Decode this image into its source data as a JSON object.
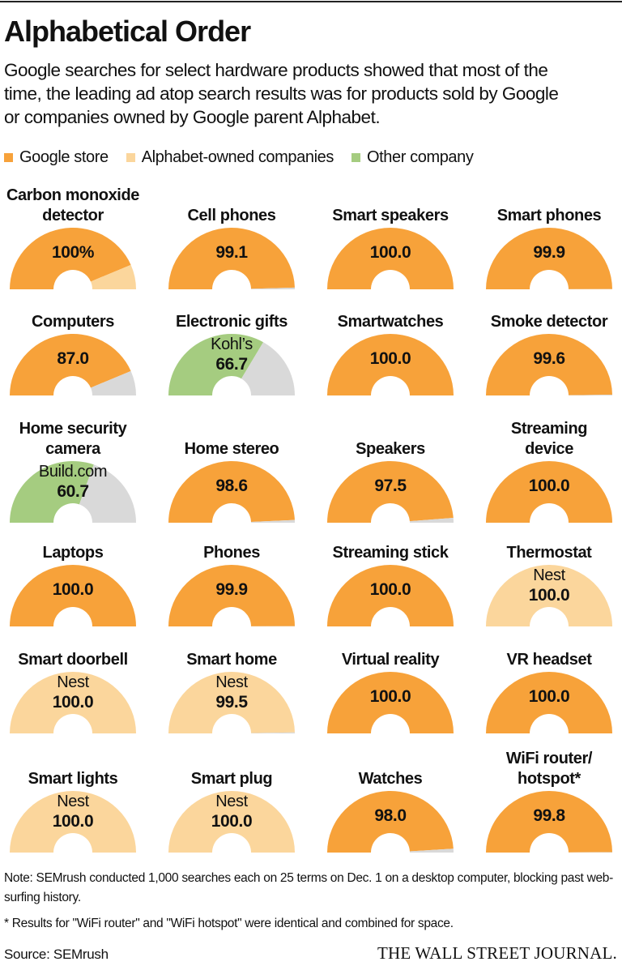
{
  "header": {
    "title": "Alphabetical Order",
    "subtitle": "Google searches for select hardware products showed that most of the time, the leading ad atop search results was for products sold by Google or companies owned by Google parent Alphabet."
  },
  "legend": [
    {
      "label": "Google store",
      "color": "#F7A23A"
    },
    {
      "label": "Alphabet-owned companies",
      "color": "#FBD69C"
    },
    {
      "label": "Other company",
      "color": "#A5CC80"
    }
  ],
  "colors": {
    "google": "#F7A23A",
    "alphabet": "#FBD69C",
    "other": "#A5CC80",
    "none": "#D9D9D9"
  },
  "chart_data": {
    "type": "gauge",
    "unit": "percent of searches where leading ad was from company",
    "range": [
      0,
      100
    ],
    "items": [
      {
        "title_lines": [
          "Carbon monoxide",
          "detector"
        ],
        "value_label": "100%",
        "company": "",
        "google": 87,
        "alphabet": 13,
        "other": 0
      },
      {
        "title_lines": [
          "Cell phones"
        ],
        "value_label": "99.1",
        "company": "",
        "google": 99.1,
        "alphabet": 0,
        "other": 0
      },
      {
        "title_lines": [
          "Smart speakers"
        ],
        "value_label": "100.0",
        "company": "",
        "google": 100,
        "alphabet": 0,
        "other": 0
      },
      {
        "title_lines": [
          "Smart phones"
        ],
        "value_label": "99.9",
        "company": "",
        "google": 99.9,
        "alphabet": 0,
        "other": 0
      },
      {
        "title_lines": [
          "Computers"
        ],
        "value_label": "87.0",
        "company": "",
        "google": 87.0,
        "alphabet": 0,
        "other": 0
      },
      {
        "title_lines": [
          "Electronic gifts"
        ],
        "value_label": "66.7",
        "company": "Kohl’s",
        "google": 0,
        "alphabet": 0,
        "other": 66.7
      },
      {
        "title_lines": [
          "Smartwatches"
        ],
        "value_label": "100.0",
        "company": "",
        "google": 100,
        "alphabet": 0,
        "other": 0
      },
      {
        "title_lines": [
          "Smoke detector"
        ],
        "value_label": "99.6",
        "company": "",
        "google": 99.6,
        "alphabet": 0,
        "other": 0
      },
      {
        "title_lines": [
          "Home security",
          "camera"
        ],
        "value_label": "60.7",
        "company": "Build.com",
        "google": 0,
        "alphabet": 0,
        "other": 60.7
      },
      {
        "title_lines": [
          "Home stereo"
        ],
        "value_label": "98.6",
        "company": "",
        "google": 98.6,
        "alphabet": 0,
        "other": 0
      },
      {
        "title_lines": [
          "Speakers"
        ],
        "value_label": "97.5",
        "company": "",
        "google": 97.5,
        "alphabet": 0,
        "other": 0
      },
      {
        "title_lines": [
          "Streaming",
          "device"
        ],
        "value_label": "100.0",
        "company": "",
        "google": 100,
        "alphabet": 0,
        "other": 0
      },
      {
        "title_lines": [
          "Laptops"
        ],
        "value_label": "100.0",
        "company": "",
        "google": 100,
        "alphabet": 0,
        "other": 0
      },
      {
        "title_lines": [
          "Phones"
        ],
        "value_label": "99.9",
        "company": "",
        "google": 99.9,
        "alphabet": 0,
        "other": 0
      },
      {
        "title_lines": [
          "Streaming stick"
        ],
        "value_label": "100.0",
        "company": "",
        "google": 100,
        "alphabet": 0,
        "other": 0
      },
      {
        "title_lines": [
          "Thermostat"
        ],
        "value_label": "100.0",
        "company": "Nest",
        "google": 0,
        "alphabet": 100,
        "other": 0
      },
      {
        "title_lines": [
          "Smart doorbell"
        ],
        "value_label": "100.0",
        "company": "Nest",
        "google": 0,
        "alphabet": 100,
        "other": 0
      },
      {
        "title_lines": [
          "Smart home"
        ],
        "value_label": "99.5",
        "company": "Nest",
        "google": 0,
        "alphabet": 99.5,
        "other": 0
      },
      {
        "title_lines": [
          "Virtual reality"
        ],
        "value_label": "100.0",
        "company": "",
        "google": 100,
        "alphabet": 0,
        "other": 0
      },
      {
        "title_lines": [
          "VR headset"
        ],
        "value_label": "100.0",
        "company": "",
        "google": 100,
        "alphabet": 0,
        "other": 0
      },
      {
        "title_lines": [
          "Smart lights"
        ],
        "value_label": "100.0",
        "company": "Nest",
        "google": 0,
        "alphabet": 100,
        "other": 0
      },
      {
        "title_lines": [
          "Smart plug"
        ],
        "value_label": "100.0",
        "company": "Nest",
        "google": 0,
        "alphabet": 100,
        "other": 0
      },
      {
        "title_lines": [
          "Watches"
        ],
        "value_label": "98.0",
        "company": "",
        "google": 98.0,
        "alphabet": 0,
        "other": 0
      },
      {
        "title_lines": [
          "WiFi router/",
          "hotspot*"
        ],
        "value_label": "99.8",
        "company": "",
        "google": 99.8,
        "alphabet": 0,
        "other": 0
      }
    ]
  },
  "footer": {
    "note": "Note: SEMrush conducted 1,000 searches each on 25 terms on Dec. 1 on a desktop computer, blocking past web-surfing history.",
    "asterisk_note": "* Results for \"WiFi router\" and \"WiFi hotspot\" were identical and combined for space.",
    "source": "Source: SEMrush",
    "publisher": "THE WALL STREET JOURNAL."
  }
}
